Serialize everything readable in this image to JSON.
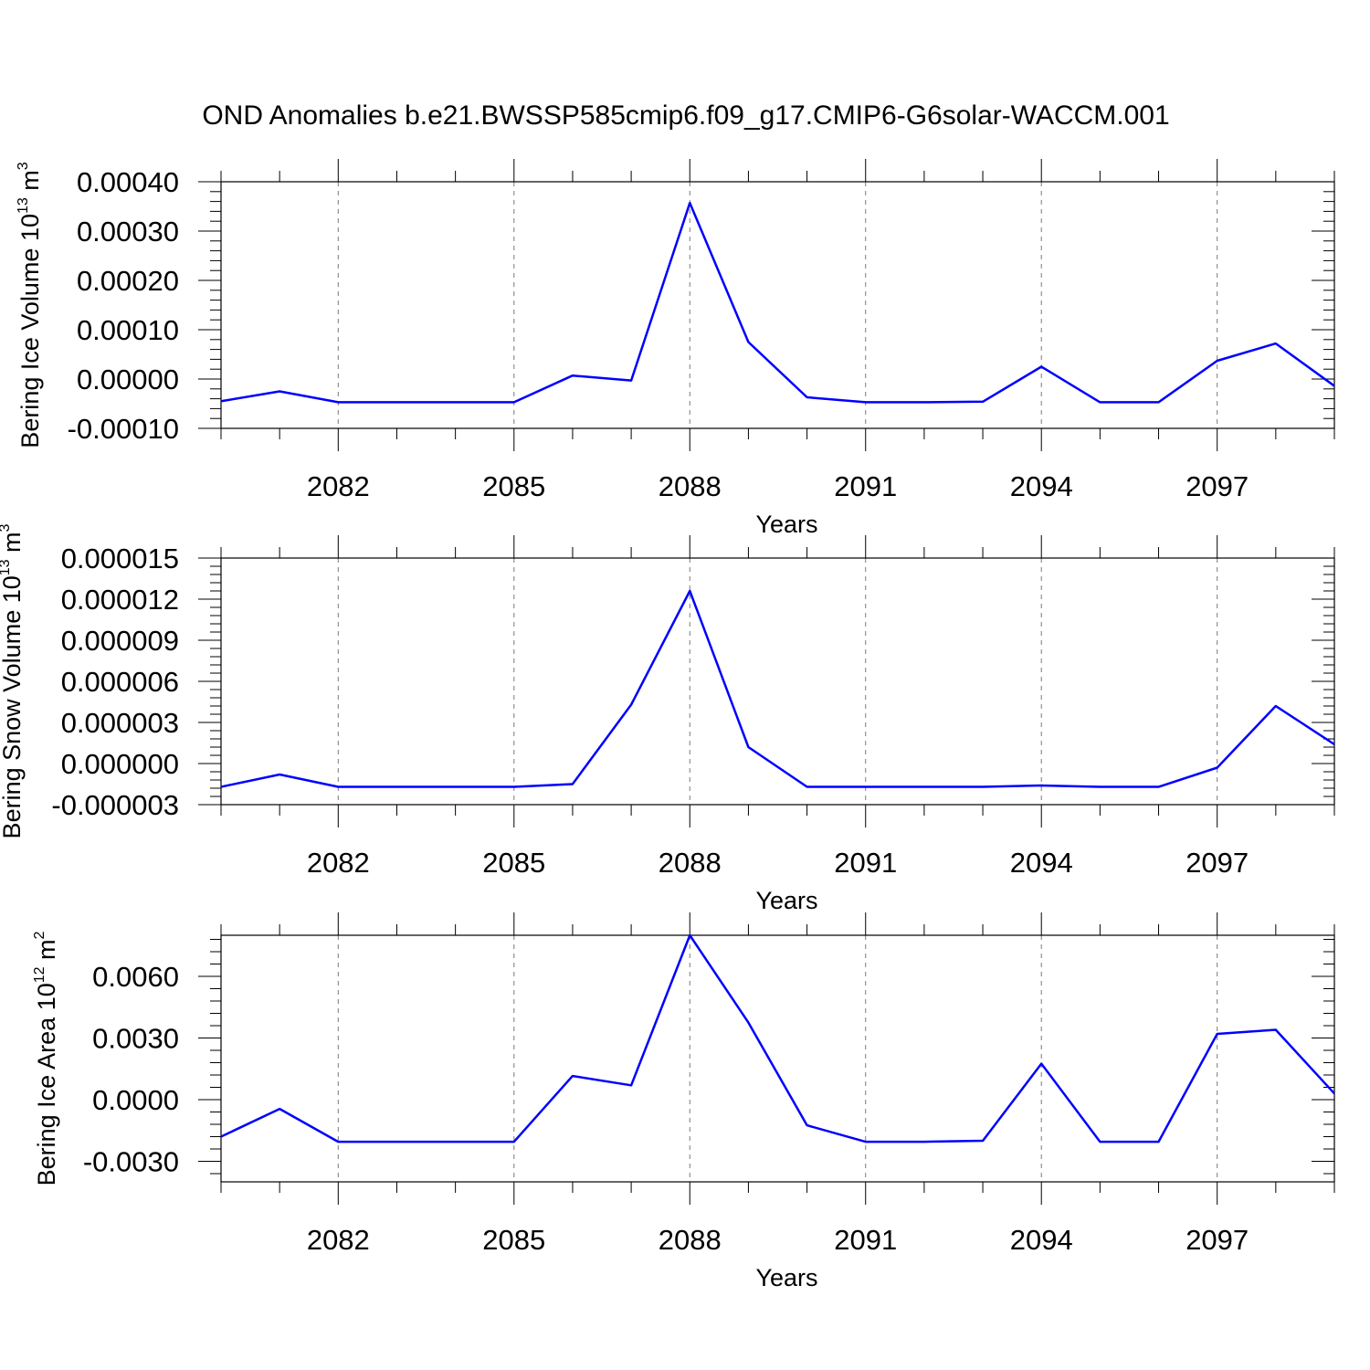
{
  "chart_data": [
    {
      "type": "line",
      "title": "OND Anomalies b.e21.BWSSP585cmip6.f09_g17.CMIP6-G6solar-WACCM.001",
      "xlabel": "Years",
      "ylabel": {
        "main": "Bering Ice Volume 10",
        "exp": "13",
        "unit": " m",
        "unit_exp": "3"
      },
      "xlim": [
        2080,
        2099
      ],
      "ylim": [
        -0.0001,
        0.0004
      ],
      "yticks": [
        -0.0001,
        0.0,
        0.0001,
        0.0002,
        0.0003,
        0.0004
      ],
      "ytick_labels": [
        "-0.00010",
        "0.00000",
        "0.00010",
        "0.00020",
        "0.00030",
        "0.00040"
      ],
      "xticks": [
        2082,
        2085,
        2088,
        2091,
        2094,
        2097
      ],
      "xtick_labels": [
        "2082",
        "2085",
        "2088",
        "2091",
        "2094",
        "2097"
      ],
      "grid": "vertical dashed at labeled years",
      "series": [
        {
          "color": "#0000ff",
          "x": [
            2080,
            2081,
            2082,
            2083,
            2084,
            2085,
            2086,
            2087,
            2088,
            2089,
            2090,
            2091,
            2092,
            2093,
            2094,
            2095,
            2096,
            2097,
            2098,
            2099
          ],
          "y": [
            -4.5e-05,
            -2.5e-05,
            -4.7e-05,
            -4.7e-05,
            -4.7e-05,
            -4.7e-05,
            7e-06,
            -3e-06,
            0.000357,
            7.5e-05,
            -3.7e-05,
            -4.7e-05,
            -4.7e-05,
            -4.6e-05,
            2.5e-05,
            -4.7e-05,
            -4.7e-05,
            3.7e-05,
            7.2e-05,
            -1.4e-05
          ]
        }
      ]
    },
    {
      "type": "line",
      "xlabel": "Years",
      "ylabel": {
        "main": "Bering Snow Volume 10",
        "exp": "13",
        "unit": " m",
        "unit_exp": "3"
      },
      "xlim": [
        2080,
        2099
      ],
      "ylim": [
        -3e-06,
        1.5e-05
      ],
      "yticks": [
        -3e-06,
        0.0,
        3e-06,
        6e-06,
        9e-06,
        1.2e-05,
        1.5e-05
      ],
      "ytick_labels": [
        "-0.000003",
        "0.000000",
        "0.000003",
        "0.000006",
        "0.000009",
        "0.000012",
        "0.000015"
      ],
      "xticks": [
        2082,
        2085,
        2088,
        2091,
        2094,
        2097
      ],
      "xtick_labels": [
        "2082",
        "2085",
        "2088",
        "2091",
        "2094",
        "2097"
      ],
      "grid": "vertical dashed at labeled years",
      "series": [
        {
          "color": "#0000ff",
          "x": [
            2080,
            2081,
            2082,
            2083,
            2084,
            2085,
            2086,
            2087,
            2088,
            2089,
            2090,
            2091,
            2092,
            2093,
            2094,
            2095,
            2096,
            2097,
            2098,
            2099
          ],
          "y": [
            -1.7e-06,
            -8e-07,
            -1.7e-06,
            -1.7e-06,
            -1.7e-06,
            -1.7e-06,
            -1.5e-06,
            4.3e-06,
            1.26e-05,
            1.2e-06,
            -1.7e-06,
            -1.7e-06,
            -1.7e-06,
            -1.7e-06,
            -1.6e-06,
            -1.7e-06,
            -1.7e-06,
            -3e-07,
            4.2e-06,
            1.4e-06
          ]
        }
      ]
    },
    {
      "type": "line",
      "xlabel": "Years",
      "ylabel": {
        "main": "Bering Ice Area 10",
        "exp": "12",
        "unit": " m",
        "unit_exp": "2"
      },
      "xlim": [
        2080,
        2099
      ],
      "ylim": [
        -0.004,
        0.008
      ],
      "yticks": [
        -0.003,
        0.0,
        0.003,
        0.006
      ],
      "ytick_labels": [
        "-0.0030",
        "0.0000",
        "0.0030",
        "0.0060"
      ],
      "xticks": [
        2082,
        2085,
        2088,
        2091,
        2094,
        2097
      ],
      "xtick_labels": [
        "2082",
        "2085",
        "2088",
        "2091",
        "2094",
        "2097"
      ],
      "grid": "vertical dashed at labeled years",
      "series": [
        {
          "color": "#0000ff",
          "x": [
            2080,
            2081,
            2082,
            2083,
            2084,
            2085,
            2086,
            2087,
            2088,
            2089,
            2090,
            2091,
            2092,
            2093,
            2094,
            2095,
            2096,
            2097,
            2098,
            2099
          ],
          "y": [
            -0.0018,
            -0.00045,
            -0.00205,
            -0.00205,
            -0.00205,
            -0.00205,
            0.00115,
            0.0007,
            0.008,
            0.00375,
            -0.00125,
            -0.00205,
            -0.00205,
            -0.002,
            0.00175,
            -0.00205,
            -0.00205,
            0.0032,
            0.0034,
            0.0003
          ]
        }
      ]
    }
  ]
}
